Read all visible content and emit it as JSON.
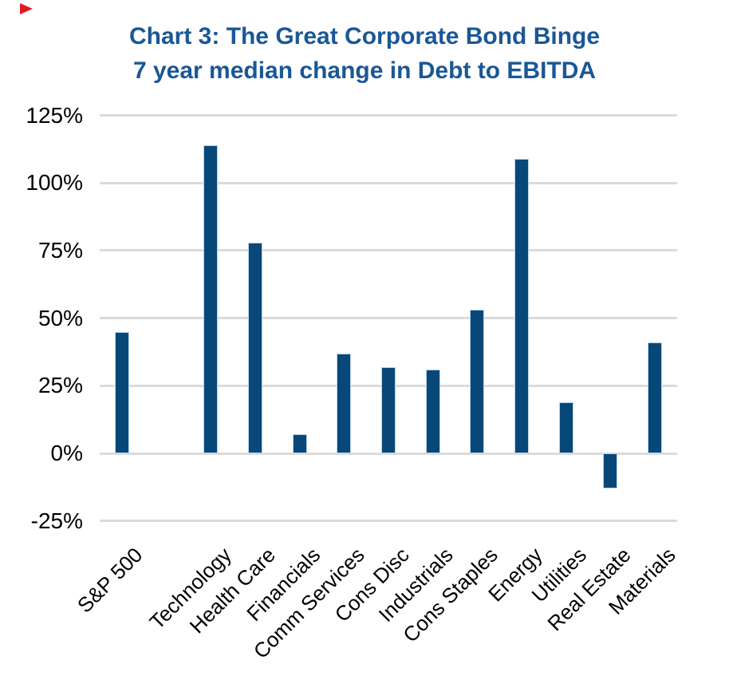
{
  "corner_marker": {
    "icon": "red-flag-triangle",
    "color": "#e01a22"
  },
  "chart_data": {
    "type": "bar",
    "title": "Chart 3: The Great Corporate Bond Binge",
    "subtitle": "7 year median change in Debt to EBITDA",
    "title_color": "#1a5796",
    "categories": [
      "S&P 500",
      "Technology",
      "Health Care",
      "Financials",
      "Comm Services",
      "Cons Disc",
      "Industrials",
      "Cons Staples",
      "Energy",
      "Utilities",
      "Real Estate",
      "Materials"
    ],
    "values": [
      45,
      114,
      78,
      7,
      37,
      32,
      31,
      53,
      109,
      19,
      -13,
      41
    ],
    "unit": "%",
    "xlabel": "",
    "ylabel": "",
    "ylim": [
      -25,
      125
    ],
    "ytick_values": [
      125,
      100,
      75,
      50,
      25,
      0,
      -25
    ],
    "ytick_labels": [
      "125%",
      "100%",
      "75%",
      "50%",
      "25%",
      "0%",
      "-25%"
    ],
    "grid": true,
    "legend": "none",
    "x_label_rotation": -45,
    "bar_color": "#084878",
    "bar_border_color": "#bcd5ec",
    "gridline_color": "#dbdbdb",
    "tick_label_color": "#000000",
    "num_slots": 13,
    "slot_of_category": [
      0,
      2,
      3,
      4,
      5,
      6,
      7,
      8,
      9,
      10,
      11,
      12
    ]
  }
}
